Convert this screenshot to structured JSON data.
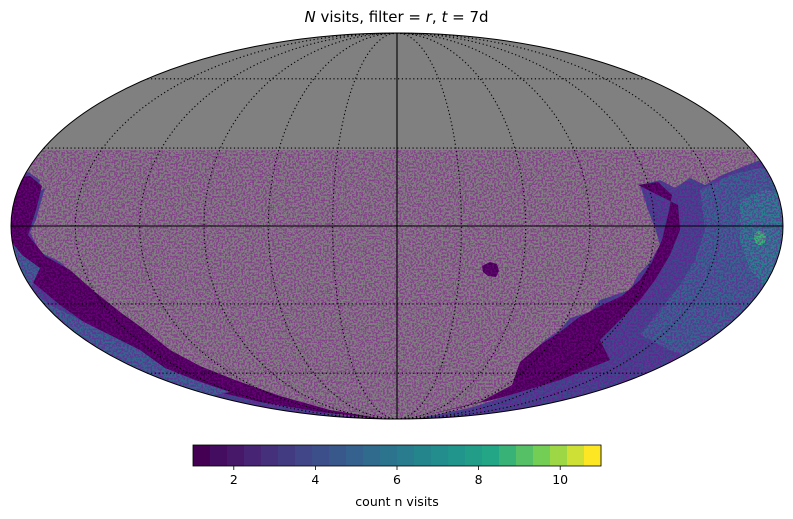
{
  "title": {
    "pre": "N",
    "mid1": " visits, filter = ",
    "filter": "r",
    "mid2": ", ",
    "tvar": "t",
    "mid3": " = 7d"
  },
  "chart_data": {
    "type": "heatmap",
    "projection": "mollweide",
    "background_color": "#808080",
    "colormap": "viridis",
    "colorbar": {
      "label": "count n visits",
      "range": [
        1,
        11
      ],
      "ticks": [
        2,
        4,
        6,
        8,
        10
      ],
      "tick_labels": [
        "2",
        "4",
        "6",
        "8",
        "10"
      ],
      "levels": 24,
      "orientation": "horizontal"
    },
    "graticule": {
      "meridians_deg": [
        -150,
        -120,
        -90,
        -60,
        -30,
        0,
        30,
        60,
        90,
        120,
        150
      ],
      "parallels_deg": [
        -60,
        -30,
        0,
        30,
        60
      ],
      "style": "dotted"
    },
    "colors": {
      "dark": "#440154",
      "purple": "#472d7b",
      "blue": "#31688e",
      "teal": "#26828e",
      "green": "#35b779"
    }
  }
}
